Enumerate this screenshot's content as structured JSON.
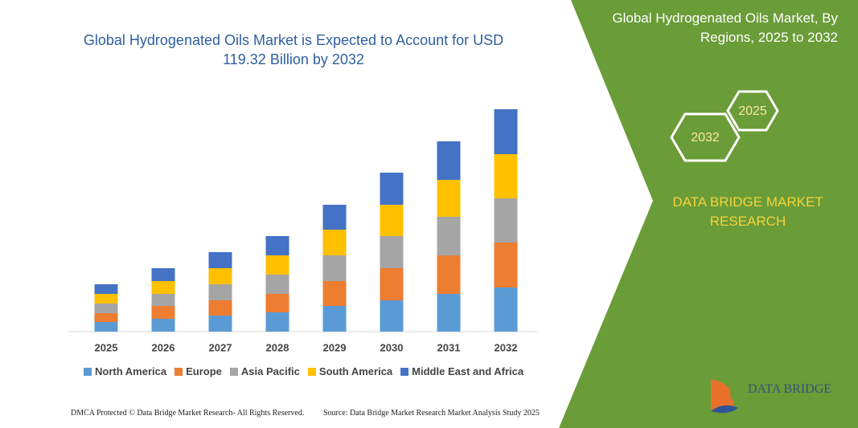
{
  "chart_data": {
    "type": "bar",
    "stacked": true,
    "title": "Global Hydrogenated Oils Market is Expected to Account for USD 119.32 Billion by 2032",
    "categories": [
      "2025",
      "2026",
      "2027",
      "2028",
      "2029",
      "2030",
      "2031",
      "2032"
    ],
    "series": [
      {
        "name": "North America",
        "color": "#5b9bd5",
        "values": [
          12,
          16,
          20,
          24,
          32,
          39,
          47,
          55
        ]
      },
      {
        "name": "Europe",
        "color": "#ed7d31",
        "values": [
          11,
          16,
          19,
          23,
          31,
          40,
          48,
          56
        ]
      },
      {
        "name": "Asia Pacific",
        "color": "#a5a5a5",
        "values": [
          12,
          15,
          20,
          24,
          32,
          40,
          48,
          55
        ]
      },
      {
        "name": "South America",
        "color": "#ffc000",
        "values": [
          12,
          16,
          20,
          24,
          32,
          39,
          46,
          55
        ]
      },
      {
        "name": "Middle East and Africa",
        "color": "#4472c4",
        "values": [
          12,
          16,
          20,
          24,
          31,
          40,
          48,
          56
        ]
      }
    ]
  },
  "panel": {
    "title": "Global Hydrogenated Oils Market, By Regions, 2025 to 2032",
    "hex_small": "2025",
    "hex_large": "2032",
    "brand": "DATA BRIDGE MARKET RESEARCH",
    "logo": "DATA BRIDGE"
  },
  "footer": {
    "left": "DMCA Protected © Data Bridge Market Research- All Rights Reserved.",
    "right": "Source: Data Bridge Market Research Market Analysis Study 2025"
  }
}
